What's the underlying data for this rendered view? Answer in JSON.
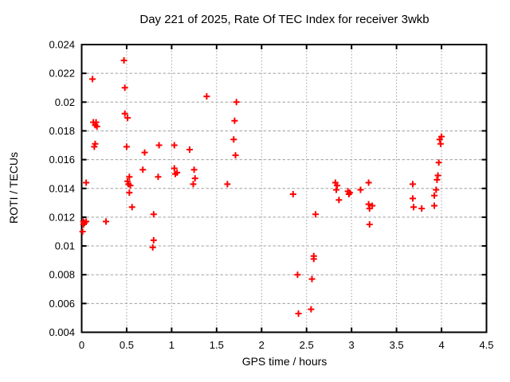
{
  "window": {
    "background": "#ffffff"
  },
  "chart_data": {
    "type": "scatter",
    "title": "Day 221 of 2025, Rate Of TEC Index for receiver 3wkb",
    "xlabel": "GPS time / hours",
    "ylabel": "ROTI / TECUs",
    "xlim": [
      0,
      4.5
    ],
    "ylim": [
      0.004,
      0.024
    ],
    "xticks": [
      0,
      0.5,
      1,
      1.5,
      2,
      2.5,
      3,
      3.5,
      4,
      4.5
    ],
    "xtick_labels": [
      "0",
      "0.5",
      "1",
      "1.5",
      "2",
      "2.5",
      "3",
      "3.5",
      "4",
      "4.5"
    ],
    "yticks": [
      0.004,
      0.006,
      0.008,
      0.01,
      0.012,
      0.014,
      0.016,
      0.018,
      0.02,
      0.022,
      0.024
    ],
    "ytick_labels": [
      "0.004",
      "0.006",
      "0.008",
      "0.01",
      "0.012",
      "0.014",
      "0.016",
      "0.018",
      "0.02",
      "0.022",
      "0.024"
    ],
    "grid": true,
    "legend": "none",
    "marker": "plus",
    "marker_color": "#ff0000",
    "marker_size": 4,
    "grid_color": "#a0a0a0",
    "axis_color": "#000000",
    "points": [
      [
        0.02,
        0.0117
      ],
      [
        0.05,
        0.0117
      ],
      [
        0.03,
        0.0116
      ],
      [
        0.02,
        0.0115
      ],
      [
        0.27,
        0.0117
      ],
      [
        0.01,
        0.011
      ],
      [
        0.05,
        0.0144
      ],
      [
        0.12,
        0.0216
      ],
      [
        0.13,
        0.0186
      ],
      [
        0.16,
        0.0186
      ],
      [
        0.15,
        0.0184
      ],
      [
        0.17,
        0.0183
      ],
      [
        0.15,
        0.0171
      ],
      [
        0.14,
        0.0169
      ],
      [
        0.47,
        0.0229
      ],
      [
        0.48,
        0.021
      ],
      [
        0.48,
        0.0192
      ],
      [
        0.51,
        0.0189
      ],
      [
        0.5,
        0.0169
      ],
      [
        0.53,
        0.0148
      ],
      [
        0.51,
        0.0145
      ],
      [
        0.52,
        0.0143
      ],
      [
        0.54,
        0.0142
      ],
      [
        0.53,
        0.0137
      ],
      [
        0.56,
        0.0127
      ],
      [
        0.7,
        0.0165
      ],
      [
        0.68,
        0.0153
      ],
      [
        0.86,
        0.017
      ],
      [
        0.85,
        0.0148
      ],
      [
        0.8,
        0.0122
      ],
      [
        0.8,
        0.0104
      ],
      [
        0.79,
        0.0099
      ],
      [
        1.03,
        0.017
      ],
      [
        1.2,
        0.0167
      ],
      [
        1.03,
        0.0154
      ],
      [
        1.06,
        0.0151
      ],
      [
        1.04,
        0.015
      ],
      [
        1.25,
        0.0153
      ],
      [
        1.26,
        0.0147
      ],
      [
        1.24,
        0.0143
      ],
      [
        1.39,
        0.0204
      ],
      [
        1.62,
        0.0143
      ],
      [
        1.72,
        0.02
      ],
      [
        1.7,
        0.0187
      ],
      [
        1.69,
        0.0174
      ],
      [
        1.71,
        0.0163
      ],
      [
        2.35,
        0.0136
      ],
      [
        2.6,
        0.0122
      ],
      [
        2.58,
        0.0093
      ],
      [
        2.58,
        0.0091
      ],
      [
        2.4,
        0.008
      ],
      [
        2.56,
        0.0077
      ],
      [
        2.55,
        0.0056
      ],
      [
        2.41,
        0.0053
      ],
      [
        2.82,
        0.0144
      ],
      [
        2.84,
        0.0142
      ],
      [
        2.83,
        0.0139
      ],
      [
        2.86,
        0.0132
      ],
      [
        2.96,
        0.0138
      ],
      [
        2.98,
        0.0137
      ],
      [
        2.97,
        0.0136
      ],
      [
        3.1,
        0.0139
      ],
      [
        3.19,
        0.0144
      ],
      [
        3.19,
        0.0129
      ],
      [
        3.23,
        0.0128
      ],
      [
        3.2,
        0.0126
      ],
      [
        3.2,
        0.0115
      ],
      [
        3.68,
        0.0143
      ],
      [
        3.68,
        0.0133
      ],
      [
        3.69,
        0.0127
      ],
      [
        3.78,
        0.0126
      ],
      [
        4.0,
        0.0176
      ],
      [
        3.98,
        0.0174
      ],
      [
        3.99,
        0.0171
      ],
      [
        3.97,
        0.0158
      ],
      [
        3.96,
        0.0149
      ],
      [
        3.95,
        0.0146
      ],
      [
        3.94,
        0.0139
      ],
      [
        3.92,
        0.0135
      ],
      [
        3.92,
        0.0128
      ]
    ]
  }
}
